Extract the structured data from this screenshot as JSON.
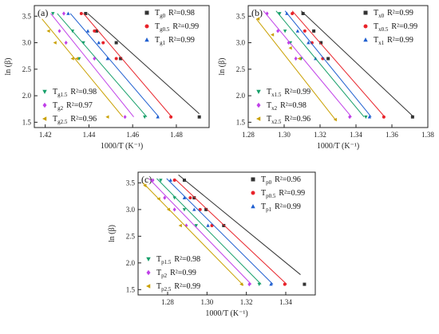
{
  "chart_data": [
    {
      "type": "scatter",
      "panel_label": "(a)",
      "xlabel": "1000/T (K⁻¹)",
      "ylabel": "ln (β)",
      "xlim": [
        1.415,
        1.495
      ],
      "ylim": [
        1.4,
        3.7
      ],
      "xticks": [
        "1.42",
        "1.44",
        "1.46",
        "1.48"
      ],
      "yticks": [
        "1.5",
        "2.0",
        "2.5",
        "3.0",
        "3.5"
      ],
      "series": [
        {
          "name": "Tg0",
          "r2": "R²=0.98",
          "color": "#333333",
          "marker": "square",
          "legend": "top-right",
          "points": [
            [
              1.4385,
              3.55
            ],
            [
              1.4435,
              3.22
            ],
            [
              1.4525,
              3.0
            ],
            [
              1.4545,
              2.7
            ],
            [
              1.4905,
              1.6
            ]
          ],
          "fit": [
            [
              1.4395,
              3.55
            ],
            [
              1.4905,
              1.66
            ]
          ]
        },
        {
          "name": "Tg0.5",
          "r2": "R²=0.99",
          "color": "#e8232a",
          "marker": "circle",
          "legend": "top-right",
          "points": [
            [
              1.4365,
              3.55
            ],
            [
              1.4425,
              3.22
            ],
            [
              1.4465,
              3.0
            ],
            [
              1.4525,
              2.7
            ],
            [
              1.4775,
              1.6
            ]
          ],
          "fit": [
            [
              1.4375,
              3.55
            ],
            [
              1.4775,
              1.62
            ]
          ]
        },
        {
          "name": "Tg1",
          "r2": "R²=0.99",
          "color": "#1f5fd0",
          "marker": "triangle-up",
          "legend": "top-right",
          "points": [
            [
              1.4305,
              3.55
            ],
            [
              1.4395,
              3.22
            ],
            [
              1.4445,
              3.0
            ],
            [
              1.4485,
              2.7
            ],
            [
              1.4715,
              1.6
            ]
          ],
          "fit": [
            [
              1.4315,
              3.55
            ],
            [
              1.472,
              1.6
            ]
          ]
        },
        {
          "name": "Tg1.5",
          "r2": "R²=0.98",
          "color": "#17a06a",
          "marker": "triangle-down",
          "legend": "bottom-left",
          "points": [
            [
              1.4235,
              3.55
            ],
            [
              1.4325,
              3.22
            ],
            [
              1.4375,
              3.0
            ],
            [
              1.4355,
              2.7
            ],
            [
              1.4655,
              1.6
            ]
          ],
          "fit": [
            [
              1.4255,
              3.55
            ],
            [
              1.4665,
              1.6
            ]
          ]
        },
        {
          "name": "Tg2",
          "r2": "R²=0.97",
          "color": "#c040e8",
          "marker": "diamond",
          "legend": "bottom-left",
          "points": [
            [
              1.4285,
              3.55
            ],
            [
              1.4265,
              3.22
            ],
            [
              1.4295,
              3.0
            ],
            [
              1.4425,
              2.7
            ],
            [
              1.4565,
              1.6
            ]
          ],
          "fit": [
            [
              1.4225,
              3.55
            ],
            [
              1.4605,
              1.6
            ]
          ]
        },
        {
          "name": "Tg2.5",
          "r2": "R²=0.96",
          "color": "#c9a000",
          "marker": "triangle-left",
          "legend": "bottom-left",
          "points": [
            [
              1.4215,
              3.22
            ],
            [
              1.4245,
              3.0
            ],
            [
              1.4325,
              2.7
            ],
            [
              1.4345,
              2.7
            ],
            [
              1.4485,
              1.6
            ]
          ],
          "fit": [
            [
              1.4185,
              3.45
            ],
            [
              1.4555,
              1.6
            ]
          ]
        }
      ]
    },
    {
      "type": "scatter",
      "panel_label": "(b)",
      "xlabel": "1000/T (K⁻¹)",
      "ylabel": "ln (β)",
      "xlim": [
        1.28,
        1.38
      ],
      "ylim": [
        1.4,
        3.7
      ],
      "xticks": [
        "1.28",
        "1.30",
        "1.32",
        "1.34",
        "1.36",
        "1.38"
      ],
      "yticks": [
        "1.5",
        "2.0",
        "2.5",
        "3.0",
        "3.5"
      ],
      "series": [
        {
          "name": "Tx0",
          "r2": "R²=0.99",
          "color": "#333333",
          "marker": "square",
          "legend": "top-right",
          "points": [
            [
              1.3105,
              3.55
            ],
            [
              1.3165,
              3.22
            ],
            [
              1.3205,
              3.0
            ],
            [
              1.3245,
              2.7
            ],
            [
              1.3715,
              1.6
            ]
          ],
          "fit": [
            [
              1.3095,
              3.6
            ],
            [
              1.3715,
              1.62
            ]
          ]
        },
        {
          "name": "Tx0.5",
          "r2": "R²=0.99",
          "color": "#e8232a",
          "marker": "circle",
          "legend": "top-right",
          "points": [
            [
              1.3045,
              3.55
            ],
            [
              1.3115,
              3.22
            ],
            [
              1.3155,
              3.0
            ],
            [
              1.3215,
              2.7
            ],
            [
              1.3555,
              1.6
            ]
          ],
          "fit": [
            [
              1.3045,
              3.6
            ],
            [
              1.3555,
              1.62
            ]
          ]
        },
        {
          "name": "Tx1",
          "r2": "R²=0.99",
          "color": "#1f5fd0",
          "marker": "triangle-up",
          "legend": "top-right",
          "points": [
            [
              1.3015,
              3.55
            ],
            [
              1.3075,
              3.22
            ],
            [
              1.3135,
              3.0
            ],
            [
              1.3175,
              2.7
            ],
            [
              1.3475,
              1.6
            ]
          ],
          "fit": [
            [
              1.3005,
              3.6
            ],
            [
              1.3485,
              1.6
            ]
          ]
        },
        {
          "name": "Tx1.5",
          "r2": "R²=0.99",
          "color": "#17a06a",
          "marker": "triangle-down",
          "legend": "bottom-left",
          "points": [
            [
              1.2975,
              3.55
            ],
            [
              1.3005,
              3.22
            ],
            [
              1.3035,
              3.0
            ],
            [
              1.3095,
              2.7
            ],
            [
              1.3455,
              1.6
            ]
          ],
          "fit": [
            [
              1.2955,
              3.6
            ],
            [
              1.3445,
              1.6
            ]
          ]
        },
        {
          "name": "Tx2",
          "r2": "R²=0.98",
          "color": "#c040e8",
          "marker": "diamond",
          "legend": "bottom-left",
          "points": [
            [
              1.2905,
              3.55
            ],
            [
              1.2965,
              3.22
            ],
            [
              1.3025,
              3.0
            ],
            [
              1.3065,
              2.7
            ],
            [
              1.3365,
              1.6
            ]
          ],
          "fit": [
            [
              1.2885,
              3.6
            ],
            [
              1.3375,
              1.6
            ]
          ]
        },
        {
          "name": "Tx2.5",
          "r2": "R²=0.96",
          "color": "#c9a000",
          "marker": "triangle-left",
          "legend": "bottom-left",
          "points": [
            [
              1.2855,
              3.45
            ],
            [
              1.2935,
              3.15
            ],
            [
              1.3035,
              2.9
            ],
            [
              1.3085,
              2.7
            ],
            [
              1.3285,
              1.55
            ]
          ],
          "fit": [
            [
              1.2845,
              3.45
            ],
            [
              1.3285,
              1.55
            ]
          ]
        }
      ]
    },
    {
      "type": "scatter",
      "panel_label": "(c)",
      "xlabel": "1000/T (K⁻¹)",
      "ylabel": "ln (β)",
      "xlim": [
        1.265,
        1.355
      ],
      "ylim": [
        1.4,
        3.7
      ],
      "xticks": [
        "1.28",
        "1.30",
        "1.32",
        "1.34"
      ],
      "yticks": [
        "1.5",
        "2.0",
        "2.5",
        "3.0",
        "3.5"
      ],
      "series": [
        {
          "name": "Tp0",
          "r2": "R²=0.96",
          "color": "#333333",
          "marker": "square",
          "legend": "top-right",
          "points": [
            [
              1.2885,
              3.55
            ],
            [
              1.2935,
              3.22
            ],
            [
              1.2995,
              3.0
            ],
            [
              1.3085,
              2.7
            ],
            [
              1.3495,
              1.6
            ]
          ],
          "fit": [
            [
              1.2855,
              3.65
            ],
            [
              1.3475,
              1.78
            ]
          ]
        },
        {
          "name": "Tp0.5",
          "r2": "R²=0.99",
          "color": "#e8232a",
          "marker": "circle",
          "legend": "top-right",
          "points": [
            [
              1.2835,
              3.55
            ],
            [
              1.2915,
              3.22
            ],
            [
              1.2965,
              3.0
            ],
            [
              1.3025,
              2.7
            ],
            [
              1.3395,
              1.6
            ]
          ],
          "fit": [
            [
              1.2835,
              3.58
            ],
            [
              1.3405,
              1.6
            ]
          ]
        },
        {
          "name": "Tp1",
          "r2": "R²=0.99",
          "color": "#1f5fd0",
          "marker": "triangle-up",
          "legend": "top-right",
          "points": [
            [
              1.2815,
              3.55
            ],
            [
              1.2885,
              3.22
            ],
            [
              1.2935,
              3.0
            ],
            [
              1.3005,
              2.7
            ],
            [
              1.3325,
              1.6
            ]
          ],
          "fit": [
            [
              1.2795,
              3.58
            ],
            [
              1.3335,
              1.6
            ]
          ]
        },
        {
          "name": "Tp1.5",
          "r2": "R²=0.98",
          "color": "#17a06a",
          "marker": "triangle-down",
          "legend": "bottom-left",
          "points": [
            [
              1.2765,
              3.55
            ],
            [
              1.2835,
              3.22
            ],
            [
              1.2885,
              3.0
            ],
            [
              1.2945,
              2.7
            ],
            [
              1.3265,
              1.6
            ]
          ],
          "fit": [
            [
              1.2745,
              3.58
            ],
            [
              1.3275,
              1.6
            ]
          ]
        },
        {
          "name": "Tp2",
          "r2": "R²=0.99",
          "color": "#c040e8",
          "marker": "diamond",
          "legend": "bottom-left",
          "points": [
            [
              1.2725,
              3.55
            ],
            [
              1.2785,
              3.22
            ],
            [
              1.2835,
              3.0
            ],
            [
              1.2895,
              2.7
            ],
            [
              1.3215,
              1.6
            ]
          ],
          "fit": [
            [
              1.2705,
              3.58
            ],
            [
              1.3225,
              1.6
            ]
          ]
        },
        {
          "name": "Tp2.5",
          "r2": "R²=0.99",
          "color": "#c9a000",
          "marker": "triangle-left",
          "legend": "bottom-left",
          "points": [
            [
              1.2685,
              3.45
            ],
            [
              1.2755,
              3.2
            ],
            [
              1.2805,
              3.0
            ],
            [
              1.2865,
              2.7
            ],
            [
              1.3175,
              1.6
            ]
          ],
          "fit": [
            [
              1.2675,
              3.5
            ],
            [
              1.3185,
              1.58
            ]
          ]
        }
      ]
    }
  ]
}
